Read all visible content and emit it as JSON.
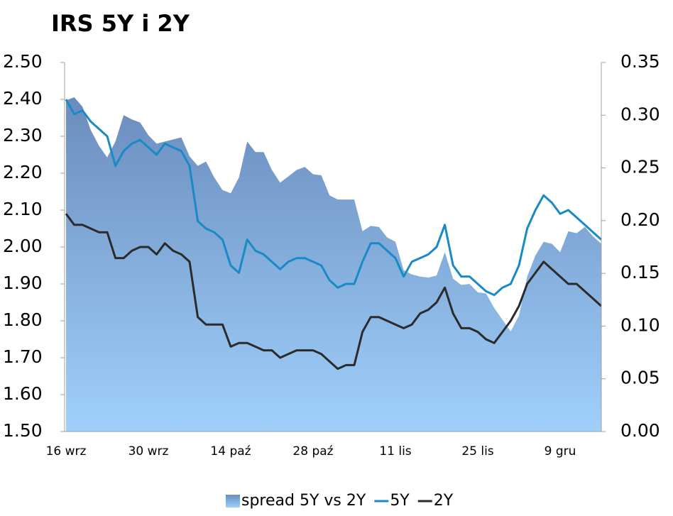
{
  "chart_data": {
    "type": "line",
    "title": "IRS 5Y i 2Y",
    "categories": [
      "16 wrz",
      null,
      null,
      null,
      null,
      null,
      null,
      null,
      null,
      null,
      "30 wrz",
      null,
      null,
      null,
      null,
      null,
      null,
      null,
      null,
      null,
      "14 paź",
      null,
      null,
      null,
      null,
      null,
      null,
      null,
      null,
      null,
      "28 paź",
      null,
      null,
      null,
      null,
      null,
      null,
      null,
      null,
      null,
      "11 lis",
      null,
      null,
      null,
      null,
      null,
      null,
      null,
      null,
      null,
      "25 lis",
      null,
      null,
      null,
      null,
      null,
      null,
      null,
      null,
      null,
      "9 gru",
      null,
      null,
      null,
      null,
      null
    ],
    "series": [
      {
        "name": "spread 5Y vs 2Y",
        "type": "area",
        "axis": "y2",
        "color": "#6f93c4",
        "values": [
          0.314,
          0.317,
          0.308,
          0.286,
          0.271,
          0.26,
          0.275,
          0.3,
          0.296,
          0.293,
          0.281,
          0.273,
          0.275,
          0.277,
          0.279,
          0.261,
          0.252,
          0.256,
          0.241,
          0.229,
          0.226,
          0.241,
          0.275,
          0.265,
          0.265,
          0.248,
          0.236,
          0.242,
          0.248,
          0.251,
          0.244,
          0.243,
          0.224,
          0.22,
          0.22,
          0.22,
          0.19,
          0.195,
          0.194,
          0.184,
          0.18,
          0.153,
          0.149,
          0.147,
          0.146,
          0.148,
          0.17,
          0.145,
          0.139,
          0.14,
          0.132,
          0.131,
          0.117,
          0.106,
          0.095,
          0.11,
          0.147,
          0.167,
          0.18,
          0.178,
          0.17,
          0.19,
          0.188,
          0.194,
          0.185,
          0.178
        ]
      },
      {
        "name": "5Y",
        "type": "line",
        "color": "#1a8ac6",
        "values": [
          2.4,
          2.36,
          2.37,
          2.34,
          2.32,
          2.3,
          2.22,
          2.26,
          2.28,
          2.29,
          2.27,
          2.25,
          2.28,
          2.27,
          2.26,
          2.22,
          2.07,
          2.05,
          2.04,
          2.02,
          1.95,
          1.93,
          2.02,
          1.99,
          1.98,
          1.96,
          1.94,
          1.96,
          1.97,
          1.97,
          1.96,
          1.95,
          1.91,
          1.89,
          1.9,
          1.9,
          1.96,
          2.01,
          2.01,
          1.99,
          1.97,
          1.92,
          1.96,
          1.97,
          1.98,
          2.0,
          2.06,
          1.95,
          1.92,
          1.92,
          1.9,
          1.88,
          1.87,
          1.89,
          1.9,
          1.95,
          2.05,
          2.1,
          2.14,
          2.12,
          2.09,
          2.1,
          2.08,
          2.06,
          2.04,
          2.02
        ]
      },
      {
        "name": "2Y",
        "type": "line",
        "color": "#2b2b2b",
        "values": [
          2.09,
          2.06,
          2.06,
          2.05,
          2.04,
          2.04,
          1.97,
          1.97,
          1.99,
          2.0,
          2.0,
          1.98,
          2.01,
          1.99,
          1.98,
          1.96,
          1.81,
          1.79,
          1.79,
          1.79,
          1.73,
          1.74,
          1.74,
          1.73,
          1.72,
          1.72,
          1.7,
          1.71,
          1.72,
          1.72,
          1.72,
          1.71,
          1.69,
          1.67,
          1.68,
          1.68,
          1.77,
          1.81,
          1.81,
          1.8,
          1.79,
          1.78,
          1.79,
          1.82,
          1.83,
          1.85,
          1.89,
          1.82,
          1.78,
          1.78,
          1.77,
          1.75,
          1.74,
          1.77,
          1.8,
          1.84,
          1.9,
          1.93,
          1.96,
          1.94,
          1.92,
          1.9,
          1.9,
          1.88,
          1.86,
          1.84
        ]
      }
    ],
    "ylim": [
      1.5,
      2.5
    ],
    "yticks": [
      {
        "value": 1.5,
        "label": "1.50"
      },
      {
        "value": 1.6,
        "label": "1.60"
      },
      {
        "value": 1.7,
        "label": "1.70"
      },
      {
        "value": 1.8,
        "label": "1.80"
      },
      {
        "value": 1.9,
        "label": "1.90"
      },
      {
        "value": 2.0,
        "label": "2.00"
      },
      {
        "value": 2.1,
        "label": "2.10"
      },
      {
        "value": 2.2,
        "label": "2.20"
      },
      {
        "value": 2.3,
        "label": "2.30"
      },
      {
        "value": 2.4,
        "label": "2.40"
      },
      {
        "value": 2.5,
        "label": "2.50"
      }
    ],
    "y2lim": [
      0,
      0.35
    ],
    "y2ticks": [
      {
        "value": 0,
        "label": "0.00"
      },
      {
        "value": 0.05,
        "label": "0.05"
      },
      {
        "value": 0.1,
        "label": "0.10"
      },
      {
        "value": 0.15,
        "label": "0.15"
      },
      {
        "value": 0.2,
        "label": "0.20"
      },
      {
        "value": 0.25,
        "label": "0.25"
      },
      {
        "value": 0.3,
        "label": "0.30"
      },
      {
        "value": 0.35,
        "label": "0.35"
      }
    ],
    "grid": false,
    "legend": "bottom"
  }
}
